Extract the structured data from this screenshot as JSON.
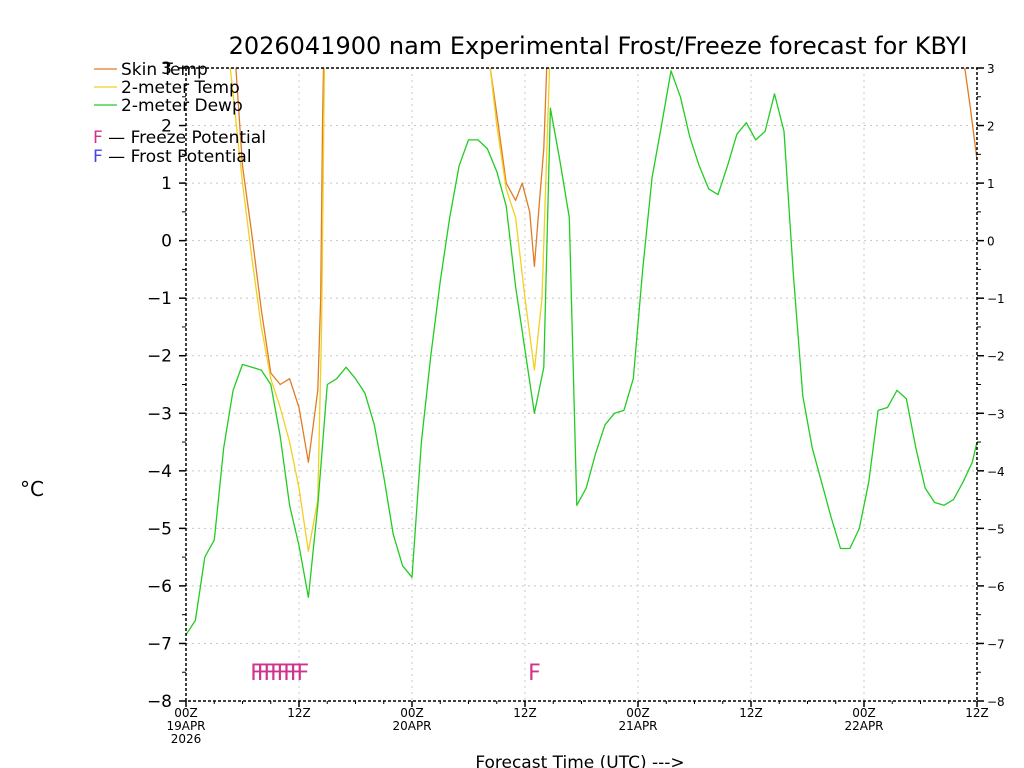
{
  "chart_data": {
    "type": "line",
    "title": "2026041900 nam Experimental Frost/Freeze forecast for KBYI",
    "xlabel": "Forecast Time (UTC) --->",
    "ylabel": "°C",
    "x_unit": "forecast hours",
    "xlim": [
      0,
      84
    ],
    "ylim": [
      -8,
      3
    ],
    "y_ticks": [
      3,
      2,
      1,
      0,
      -1,
      -2,
      -3,
      -4,
      -5,
      -6,
      -7,
      -8
    ],
    "x_ticks": [
      {
        "hour": 0,
        "lines": [
          "00Z",
          "19APR",
          "2026"
        ]
      },
      {
        "hour": 12,
        "lines": [
          "12Z"
        ]
      },
      {
        "hour": 24,
        "lines": [
          "00Z",
          "20APR"
        ]
      },
      {
        "hour": 36,
        "lines": [
          "12Z"
        ]
      },
      {
        "hour": 48,
        "lines": [
          "00Z",
          "21APR"
        ]
      },
      {
        "hour": 60,
        "lines": [
          "12Z"
        ]
      },
      {
        "hour": 72,
        "lines": [
          "00Z",
          "22APR"
        ]
      },
      {
        "hour": 84,
        "lines": [
          "12Z"
        ]
      }
    ],
    "series": [
      {
        "name": "Skin Temp",
        "color": "#e07b28",
        "points": [
          [
            5.3,
            3
          ],
          [
            6,
            1.3
          ],
          [
            7,
            0.1
          ],
          [
            8,
            -1.2
          ],
          [
            9,
            -2.3
          ],
          [
            10,
            -2.5
          ],
          [
            11,
            -2.4
          ],
          [
            12,
            -2.9
          ],
          [
            13,
            -3.85
          ],
          [
            14,
            -2.6
          ],
          [
            14.3,
            -1.0
          ],
          [
            14.5,
            2.0
          ],
          [
            14.6,
            3
          ]
        ]
      },
      {
        "name": "2-meter Temp",
        "color": "#f0d020",
        "points": [
          [
            4.7,
            3
          ],
          [
            6,
            1.0
          ],
          [
            7,
            -0.3
          ],
          [
            8,
            -1.5
          ],
          [
            9,
            -2.4
          ],
          [
            10,
            -2.9
          ],
          [
            11,
            -3.5
          ],
          [
            12,
            -4.3
          ],
          [
            13,
            -5.4
          ],
          [
            14,
            -4.5
          ],
          [
            14.4,
            -1.5
          ],
          [
            14.7,
            3
          ]
        ]
      },
      {
        "name": "2-meter Dewp",
        "color": "#22cc22",
        "points": [
          [
            0,
            -6.85
          ],
          [
            1,
            -6.6
          ],
          [
            2,
            -5.5
          ],
          [
            3,
            -5.2
          ],
          [
            4,
            -3.6
          ],
          [
            5,
            -2.6
          ],
          [
            6,
            -2.15
          ],
          [
            7,
            -2.2
          ],
          [
            8,
            -2.25
          ],
          [
            9,
            -2.5
          ],
          [
            10,
            -3.4
          ],
          [
            11,
            -4.6
          ],
          [
            12,
            -5.3
          ],
          [
            13,
            -6.2
          ],
          [
            14,
            -4.6
          ],
          [
            15,
            -2.5
          ],
          [
            16,
            -2.4
          ],
          [
            17,
            -2.2
          ],
          [
            18,
            -2.4
          ],
          [
            19,
            -2.65
          ],
          [
            20,
            -3.2
          ],
          [
            21,
            -4.1
          ],
          [
            22,
            -5.1
          ],
          [
            23,
            -5.65
          ],
          [
            24,
            -5.85
          ],
          [
            25,
            -3.5
          ],
          [
            26,
            -2.0
          ],
          [
            27,
            -0.7
          ],
          [
            28,
            0.4
          ],
          [
            29,
            1.3
          ],
          [
            30,
            1.75
          ],
          [
            31,
            1.75
          ],
          [
            32,
            1.6
          ],
          [
            33,
            1.2
          ],
          [
            34,
            0.6
          ],
          [
            35,
            -0.8
          ],
          [
            36,
            -1.9
          ],
          [
            37,
            -3.0
          ],
          [
            38,
            -2.2
          ],
          [
            38.7,
            2.3
          ],
          [
            39.7,
            1.4
          ],
          [
            40.7,
            0.4
          ],
          [
            41.5,
            -4.6
          ],
          [
            42.5,
            -4.3
          ],
          [
            43.5,
            -3.7
          ],
          [
            44.5,
            -3.2
          ],
          [
            45.5,
            -3.0
          ],
          [
            46.5,
            -2.95
          ],
          [
            47.5,
            -2.4
          ],
          [
            48.5,
            -0.5
          ],
          [
            49.5,
            1.1
          ],
          [
            50.5,
            2.0
          ],
          [
            51.5,
            2.95
          ],
          [
            52.5,
            2.5
          ],
          [
            53.5,
            1.8
          ],
          [
            54.5,
            1.3
          ],
          [
            55.5,
            0.9
          ],
          [
            56.5,
            0.8
          ],
          [
            57.5,
            1.3
          ],
          [
            58.5,
            1.85
          ],
          [
            59.5,
            2.05
          ],
          [
            60.5,
            1.75
          ],
          [
            61.5,
            1.9
          ],
          [
            62.5,
            2.55
          ],
          [
            63.5,
            1.9
          ],
          [
            64.5,
            -0.6
          ],
          [
            65.5,
            -2.7
          ],
          [
            66.5,
            -3.6
          ],
          [
            67.5,
            -4.2
          ],
          [
            68.5,
            -4.8
          ],
          [
            69.5,
            -5.35
          ],
          [
            70.5,
            -5.35
          ],
          [
            71.5,
            -5.0
          ],
          [
            72.5,
            -4.2
          ],
          [
            73.5,
            -2.95
          ],
          [
            74.5,
            -2.9
          ],
          [
            75.5,
            -2.6
          ],
          [
            76.5,
            -2.75
          ],
          [
            77.5,
            -3.6
          ],
          [
            78.5,
            -4.3
          ],
          [
            79.5,
            -4.55
          ],
          [
            80.5,
            -4.6
          ],
          [
            81.5,
            -4.5
          ],
          [
            82.5,
            -4.2
          ],
          [
            83.5,
            -3.85
          ],
          [
            84,
            -3.5
          ]
        ]
      },
      {
        "name": "Skin Temp (day 2 overnight)",
        "color": "#e07b28",
        "points": [
          [
            32.3,
            3
          ],
          [
            33,
            2.2
          ],
          [
            34,
            1.0
          ],
          [
            35,
            0.7
          ],
          [
            35.7,
            1.0
          ],
          [
            36.5,
            0.5
          ],
          [
            37,
            -0.45
          ],
          [
            37.5,
            0.6
          ],
          [
            38,
            1.6
          ],
          [
            38.3,
            3
          ]
        ]
      },
      {
        "name": "2-meter Temp (day 2 overnight)",
        "color": "#f0d020",
        "points": [
          [
            32.3,
            3
          ],
          [
            33,
            2.0
          ],
          [
            34,
            0.9
          ],
          [
            35,
            0.4
          ],
          [
            36,
            -1.0
          ],
          [
            37,
            -2.25
          ],
          [
            37.8,
            -1.0
          ],
          [
            38.3,
            1.5
          ],
          [
            38.6,
            3
          ]
        ]
      },
      {
        "name": "Skin Temp (end)",
        "color": "#e07b28",
        "points": [
          [
            82.7,
            3
          ],
          [
            83.3,
            2.3
          ],
          [
            84,
            1.4
          ]
        ]
      }
    ],
    "frost_freeze": {
      "freeze_hours": [
        7.5,
        8.2,
        8.9,
        9.6,
        10.3,
        11.0,
        11.7,
        12.4,
        37
      ],
      "freeze_label": "F",
      "freeze_color": "#d0338d",
      "frost_color": "#4444ee",
      "y_value": -7.5
    },
    "legend": {
      "placement": "top-left",
      "lines": [
        {
          "label": "Skin Temp",
          "color": "#e07b28"
        },
        {
          "label": "2-meter Temp",
          "color": "#f0d020"
        },
        {
          "label": "2-meter Dewp",
          "color": "#22cc22"
        }
      ],
      "marks": [
        {
          "letter": "F",
          "text": " — Freeze Potential",
          "color": "#d0338d"
        },
        {
          "letter": "F",
          "text": " — Frost Potential",
          "color": "#4444ee"
        }
      ]
    }
  }
}
